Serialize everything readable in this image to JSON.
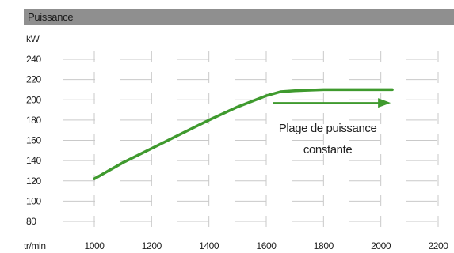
{
  "chart_data": {
    "type": "line",
    "title": "Puissance",
    "ylabel": "kW",
    "xlabel": "tr/min",
    "x_ticks": [
      1000,
      1200,
      1400,
      1600,
      1800,
      2000,
      2200
    ],
    "y_ticks": [
      80,
      100,
      120,
      140,
      160,
      180,
      200,
      220,
      240
    ],
    "xlim": [
      1000,
      2200
    ],
    "ylim": [
      80,
      240
    ],
    "grid": true,
    "series": [
      {
        "color": "#3f9a2e",
        "x": [
          1000,
          1100,
          1200,
          1300,
          1400,
          1500,
          1600,
          1650,
          1700,
          1800,
          1900,
          2000,
          2040
        ],
        "y": [
          122,
          138,
          152,
          166,
          180,
          193,
          204,
          208,
          209,
          210,
          210,
          210,
          210
        ]
      }
    ],
    "annotation": {
      "line1": "Plage de puissance",
      "line2": "constante",
      "arrow_from_x": 1650,
      "arrow_to_x": 2040,
      "arrow_y": 197
    }
  }
}
